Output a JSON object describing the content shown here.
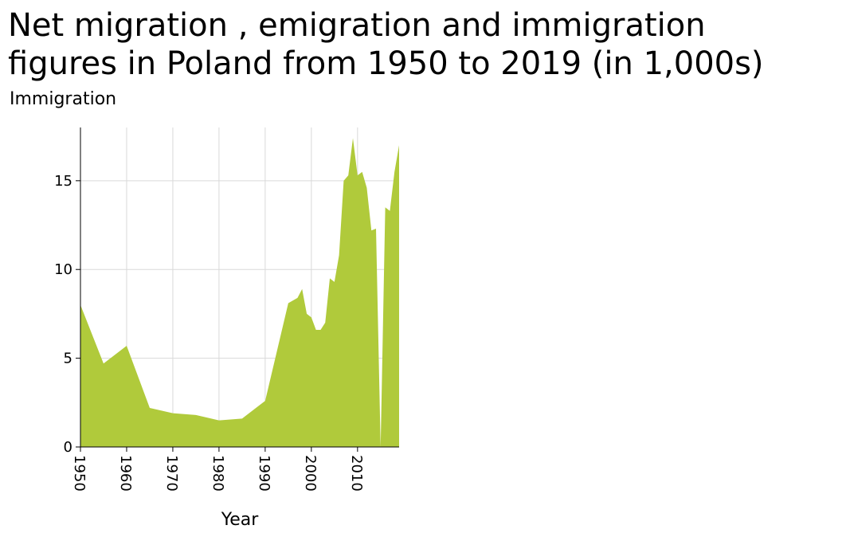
{
  "chart_data": {
    "type": "area",
    "title": "Net migration , emigration and immigration\nfigures in Poland from 1950 to 2019 (in 1,000s)",
    "ylabel": "Immigration",
    "xlabel": "Year",
    "xlim": [
      1950,
      2019
    ],
    "ylim": [
      0,
      18
    ],
    "xticks": [
      1950,
      1960,
      1970,
      1980,
      1990,
      2000,
      2010
    ],
    "yticks": [
      0,
      5,
      10,
      15
    ],
    "grid": true,
    "color": "#b0ca3b",
    "x": [
      1950,
      1955,
      1960,
      1965,
      1970,
      1975,
      1980,
      1985,
      1990,
      1995,
      1997,
      1998,
      1999,
      2000,
      2001,
      2002,
      2003,
      2004,
      2005,
      2006,
      2007,
      2008,
      2009,
      2010,
      2011,
      2012,
      2013,
      2014,
      2015,
      2016,
      2017,
      2018,
      2019
    ],
    "y": [
      8.0,
      4.7,
      5.7,
      2.2,
      1.9,
      1.8,
      1.5,
      1.6,
      2.6,
      8.1,
      8.4,
      8.9,
      7.5,
      7.3,
      6.6,
      6.6,
      7.0,
      9.5,
      9.3,
      10.8,
      15.0,
      15.3,
      17.4,
      15.3,
      15.5,
      14.6,
      12.2,
      12.3,
      0.0,
      13.5,
      13.3,
      15.5,
      17.0
    ]
  }
}
